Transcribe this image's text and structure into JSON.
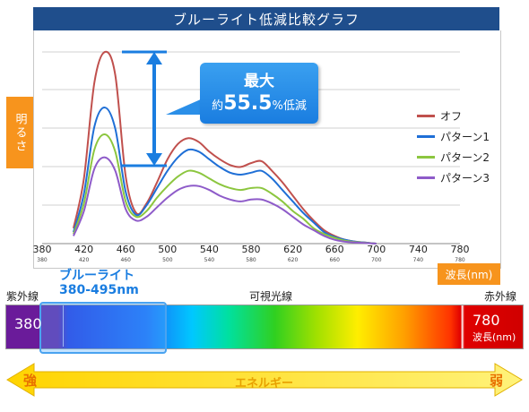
{
  "chart_data": {
    "type": "line",
    "title": "ブルーライト低減比較グラフ",
    "ylabel": "明るさ",
    "xlabel": "波長(nm)",
    "xlim": [
      380,
      780
    ],
    "x_ticks": [
      380,
      420,
      460,
      500,
      540,
      580,
      620,
      660,
      700,
      740,
      780
    ],
    "x": [
      410,
      420,
      430,
      440,
      450,
      460,
      470,
      480,
      490,
      500,
      510,
      520,
      530,
      540,
      550,
      560,
      570,
      580,
      590,
      600,
      610,
      620,
      630,
      640,
      650,
      660,
      670,
      680,
      690,
      700
    ],
    "series": [
      {
        "name": "オフ",
        "color": "#c0504d",
        "values": [
          0.08,
          0.34,
          0.84,
          1.0,
          0.88,
          0.35,
          0.16,
          0.21,
          0.32,
          0.44,
          0.52,
          0.55,
          0.53,
          0.48,
          0.44,
          0.41,
          0.4,
          0.42,
          0.43,
          0.38,
          0.32,
          0.25,
          0.18,
          0.12,
          0.07,
          0.04,
          0.02,
          0.01,
          0.005,
          0.0
        ]
      },
      {
        "name": "パターン1",
        "color": "#1f6fd6",
        "values": [
          0.06,
          0.26,
          0.61,
          0.71,
          0.6,
          0.27,
          0.15,
          0.2,
          0.29,
          0.38,
          0.45,
          0.49,
          0.48,
          0.44,
          0.4,
          0.37,
          0.36,
          0.37,
          0.38,
          0.34,
          0.28,
          0.22,
          0.16,
          0.11,
          0.06,
          0.035,
          0.02,
          0.01,
          0.005,
          0.0
        ]
      },
      {
        "name": "パターン2",
        "color": "#8cc63f",
        "values": [
          0.05,
          0.21,
          0.49,
          0.57,
          0.48,
          0.22,
          0.14,
          0.17,
          0.24,
          0.3,
          0.35,
          0.38,
          0.37,
          0.34,
          0.31,
          0.29,
          0.28,
          0.29,
          0.29,
          0.26,
          0.22,
          0.17,
          0.13,
          0.08,
          0.05,
          0.03,
          0.015,
          0.008,
          0.004,
          0.0
        ]
      },
      {
        "name": "パターン3",
        "color": "#8e5bc9",
        "values": [
          0.04,
          0.17,
          0.39,
          0.45,
          0.38,
          0.18,
          0.12,
          0.14,
          0.19,
          0.24,
          0.28,
          0.3,
          0.3,
          0.28,
          0.25,
          0.23,
          0.22,
          0.23,
          0.23,
          0.21,
          0.18,
          0.14,
          0.1,
          0.07,
          0.04,
          0.02,
          0.01,
          0.006,
          0.003,
          0.0
        ]
      }
    ],
    "annotation": {
      "line1": "最大",
      "line2_prefix": "約",
      "line2_value": "55.5",
      "line2_suffix": "%低減"
    }
  },
  "spectrum": {
    "left_label": "紫外線",
    "center_label": "可視光線",
    "right_label": "赤外線",
    "start_value": "380",
    "end_value": "780",
    "end_unit": "波長(nm)",
    "blue_light_title": "ブルーライト",
    "blue_light_range": "380-495nm"
  },
  "energy": {
    "label": "エネルギー",
    "strong": "強",
    "weak": "弱"
  }
}
